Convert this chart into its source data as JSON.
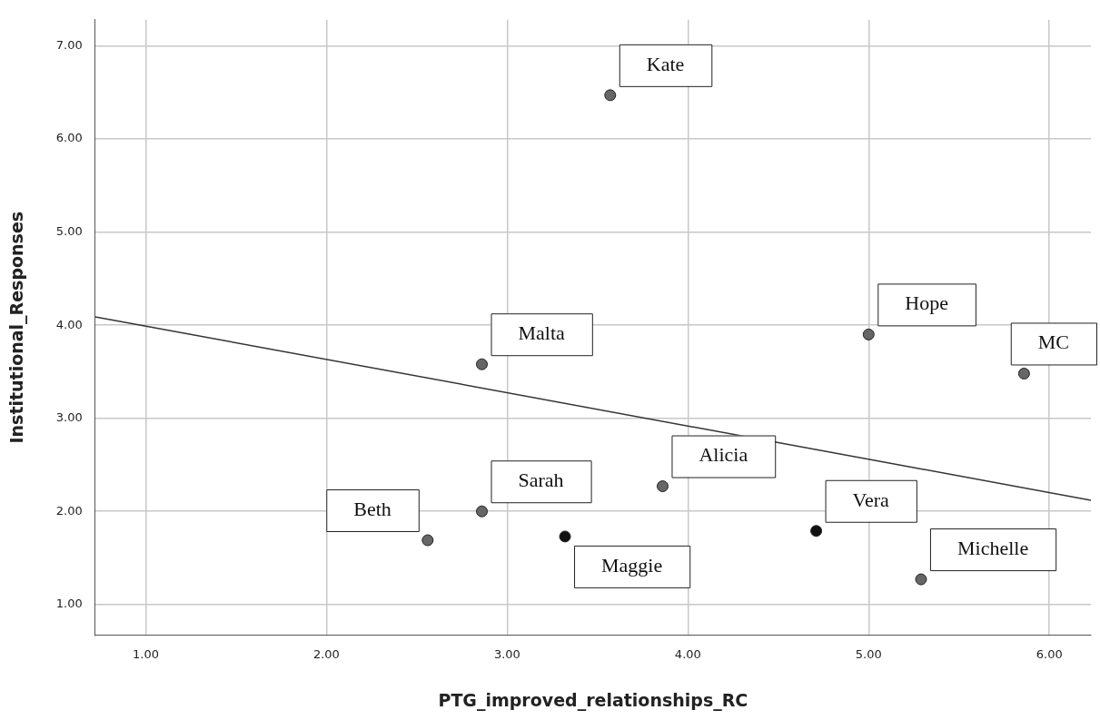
{
  "chart_data": {
    "type": "scatter",
    "xlabel": "PTG_improved_relationships_RC",
    "ylabel": "Institutional_Responses",
    "xlim": [
      0.72,
      6.23
    ],
    "ylim": [
      0.67,
      7.28
    ],
    "xticks": [
      {
        "value": 1,
        "label": "1.00"
      },
      {
        "value": 2,
        "label": "2.00"
      },
      {
        "value": 3,
        "label": "3.00"
      },
      {
        "value": 4,
        "label": "4.00"
      },
      {
        "value": 5,
        "label": "5.00"
      },
      {
        "value": 6,
        "label": "6.00"
      }
    ],
    "yticks": [
      {
        "value": 1,
        "label": "1.00"
      },
      {
        "value": 2,
        "label": "2.00"
      },
      {
        "value": 3,
        "label": "3.00"
      },
      {
        "value": 4,
        "label": "4.00"
      },
      {
        "value": 5,
        "label": "5.00"
      },
      {
        "value": 6,
        "label": "6.00"
      },
      {
        "value": 7,
        "label": "7.00"
      }
    ],
    "grid": true,
    "legend": false,
    "marker": "circle",
    "series": [
      {
        "x": [
          3.57,
          2.86,
          5.0,
          5.86,
          3.86,
          2.86,
          2.56,
          3.32,
          4.71,
          5.29
        ],
        "values": [
          6.47,
          3.58,
          3.9,
          3.48,
          2.27,
          2.0,
          1.69,
          1.73,
          1.79,
          1.27
        ],
        "colors": [
          "#666666",
          "#666666",
          "#666666",
          "#666666",
          "#666666",
          "#666666",
          "#666666",
          "#111111",
          "#111111",
          "#666666"
        ]
      },
      {
        "type": "line",
        "x": [
          0.72,
          6.23
        ],
        "values": [
          4.09,
          2.12
        ],
        "color": "#333333",
        "marker": "none"
      }
    ],
    "annotations": [
      {
        "text": "Kate",
        "x": 3.57,
        "y": 6.47
      },
      {
        "text": "Malta",
        "x": 2.86,
        "y": 3.58
      },
      {
        "text": "Hope",
        "x": 5.0,
        "y": 3.9
      },
      {
        "text": "MC",
        "x": 5.86,
        "y": 3.48
      },
      {
        "text": "Alicia",
        "x": 3.86,
        "y": 2.27
      },
      {
        "text": "Sarah",
        "x": 2.86,
        "y": 2.0
      },
      {
        "text": "Beth",
        "x": 2.56,
        "y": 1.69
      },
      {
        "text": "Maggie",
        "x": 3.32,
        "y": 1.73
      },
      {
        "text": "Vera",
        "x": 4.71,
        "y": 1.79
      },
      {
        "text": "Michelle",
        "x": 5.29,
        "y": 1.27
      }
    ]
  }
}
